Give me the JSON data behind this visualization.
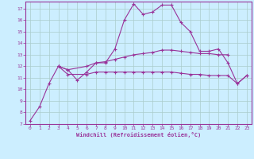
{
  "xlabel": "Windchill (Refroidissement éolien,°C)",
  "bg_color": "#cceeff",
  "line_color": "#993399",
  "grid_color": "#aacccc",
  "xlim": [
    -0.5,
    23.5
  ],
  "ylim": [
    7,
    17.6
  ],
  "xticks": [
    0,
    1,
    2,
    3,
    4,
    5,
    6,
    7,
    8,
    9,
    10,
    11,
    12,
    13,
    14,
    15,
    16,
    17,
    18,
    19,
    20,
    21,
    22,
    23
  ],
  "yticks": [
    7,
    8,
    9,
    10,
    11,
    12,
    13,
    14,
    15,
    16,
    17
  ],
  "line1_x": [
    0,
    1,
    2,
    3,
    4,
    5,
    6,
    7,
    8,
    9,
    10,
    11,
    12,
    13,
    14,
    15,
    16,
    17,
    18,
    19,
    20,
    21,
    22,
    23
  ],
  "line1_y": [
    7.3,
    8.5,
    10.5,
    12.0,
    11.7,
    10.8,
    11.5,
    12.3,
    12.3,
    13.5,
    16.0,
    17.4,
    16.5,
    16.7,
    17.3,
    17.3,
    15.8,
    15.0,
    13.3,
    13.3,
    13.5,
    12.3,
    10.5,
    11.2
  ],
  "line2_x": [
    3,
    4,
    6,
    7,
    8,
    9,
    10,
    11,
    12,
    13,
    14,
    15,
    16,
    17,
    18,
    19,
    20,
    21
  ],
  "line2_y": [
    12.0,
    11.7,
    12.0,
    12.3,
    12.4,
    12.6,
    12.8,
    13.0,
    13.1,
    13.2,
    13.4,
    13.4,
    13.3,
    13.2,
    13.1,
    13.1,
    13.0,
    13.0
  ],
  "line3_x": [
    3,
    4,
    6,
    7,
    8,
    9,
    10,
    11,
    12,
    13,
    14,
    15,
    16,
    17,
    18,
    19,
    20,
    21,
    22,
    23
  ],
  "line3_y": [
    12.0,
    11.3,
    11.3,
    11.5,
    11.5,
    11.5,
    11.5,
    11.5,
    11.5,
    11.5,
    11.5,
    11.5,
    11.4,
    11.3,
    11.3,
    11.2,
    11.2,
    11.2,
    10.5,
    11.2
  ]
}
